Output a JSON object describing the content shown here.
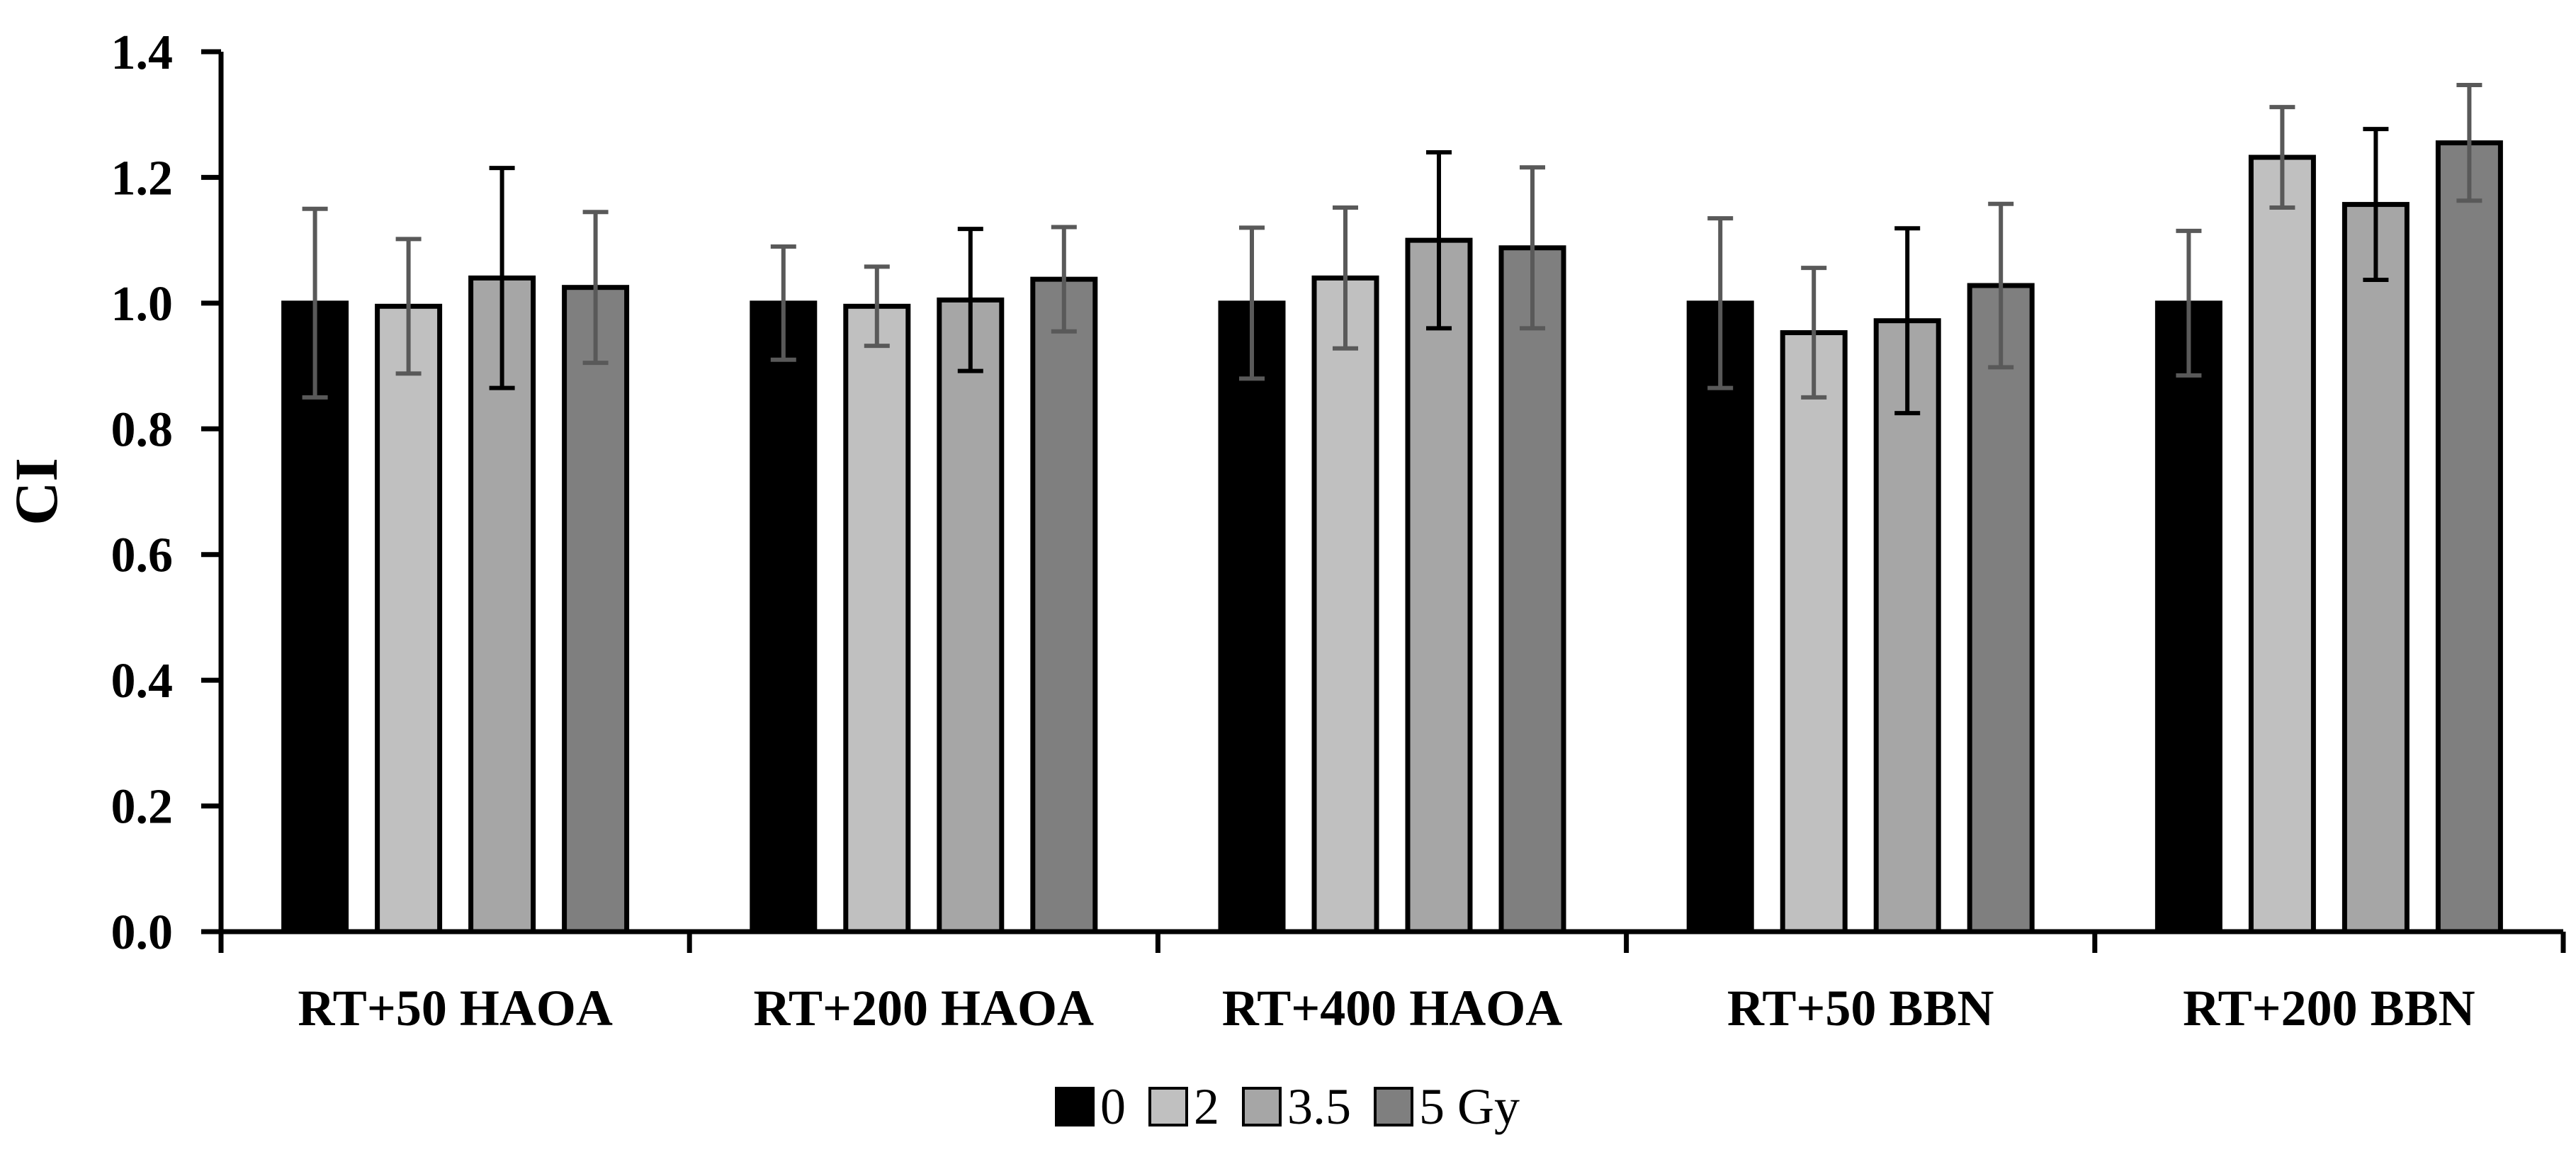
{
  "chart_data": {
    "type": "bar",
    "title": "",
    "xlabel": "",
    "ylabel": "CI",
    "ylim": [
      0,
      1.4
    ],
    "yticks": [
      "0.0",
      "0.2",
      "0.4",
      "0.6",
      "0.8",
      "1.0",
      "1.2",
      "1.4"
    ],
    "grid": false,
    "legend_position": "bottom",
    "categories": [
      "RT+50 HAOA",
      "RT+200 HAOA",
      "RT+400 HAOA",
      "RT+50 BBN",
      "RT+200 BBN"
    ],
    "series": [
      {
        "name": "0",
        "color": "#000000",
        "values": [
          1.0,
          1.0,
          1.0,
          1.0,
          1.0
        ],
        "errors": [
          0.15,
          0.09,
          0.12,
          0.135,
          0.115
        ],
        "error_color": "#595959"
      },
      {
        "name": "2",
        "color": "#c0c0c0",
        "values": [
          0.995,
          0.995,
          1.04,
          0.953,
          1.232
        ],
        "errors": [
          0.107,
          0.063,
          0.112,
          0.103,
          0.08
        ],
        "error_color": "#595959"
      },
      {
        "name": "3.5",
        "color": "#a6a6a6",
        "values": [
          1.04,
          1.005,
          1.1,
          0.972,
          1.157
        ],
        "errors": [
          0.175,
          0.113,
          0.14,
          0.147,
          0.12
        ],
        "error_color": "#000000"
      },
      {
        "name": "5 Gy",
        "color": "#7f7f7f",
        "values": [
          1.025,
          1.038,
          1.088,
          1.028,
          1.255
        ],
        "errors": [
          0.12,
          0.083,
          0.128,
          0.13,
          0.092
        ],
        "error_color": "#595959"
      }
    ]
  }
}
